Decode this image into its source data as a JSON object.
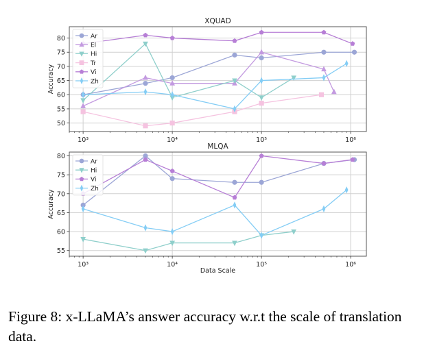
{
  "chart_data": [
    {
      "type": "line",
      "title": "XQUAD",
      "xlabel": "",
      "ylabel": "Accuracy",
      "xscale": "log",
      "xlim": [
        700,
        1500000
      ],
      "ylim": [
        47,
        84
      ],
      "yticks": [
        50,
        55,
        60,
        65,
        70,
        75,
        80
      ],
      "xticks": [
        1000,
        10000,
        100000,
        1000000
      ],
      "xtick_labels": [
        "10³",
        "10⁴",
        "10⁵",
        "10⁶"
      ],
      "grid": true,
      "legend_position": "top-left",
      "series": [
        {
          "name": "Ar",
          "color": "#9ca6d6",
          "marker": "circle",
          "x": [
            1000,
            5000,
            10000,
            50000,
            100000,
            500000,
            1100000
          ],
          "y": [
            60,
            64,
            66,
            74,
            73,
            75,
            75
          ]
        },
        {
          "name": "El",
          "color": "#c39ae0",
          "marker": "triangle-up",
          "x": [
            1000,
            5000,
            10000,
            50000,
            100000,
            500000,
            650000
          ],
          "y": [
            56,
            66,
            64,
            64,
            75,
            69,
            61
          ]
        },
        {
          "name": "Hi",
          "color": "#8fcfcb",
          "marker": "triangle-down",
          "x": [
            1000,
            5000,
            10000,
            50000,
            100000,
            230000
          ],
          "y": [
            58,
            78,
            59,
            65,
            59,
            66
          ]
        },
        {
          "name": "Tr",
          "color": "#f5c3e0",
          "marker": "square",
          "x": [
            1000,
            5000,
            10000,
            50000,
            100000,
            470000
          ],
          "y": [
            54,
            49,
            50,
            54,
            57,
            60
          ]
        },
        {
          "name": "Vi",
          "color": "#b77fd6",
          "marker": "pentagon",
          "x": [
            1000,
            5000,
            10000,
            50000,
            100000,
            500000,
            1050000
          ],
          "y": [
            78,
            81,
            80,
            79,
            82,
            82,
            78
          ]
        },
        {
          "name": "Zh",
          "color": "#84cdf5",
          "marker": "thin-diamond",
          "x": [
            1000,
            5000,
            10000,
            50000,
            100000,
            500000,
            900000
          ],
          "y": [
            60,
            61,
            60,
            55,
            65,
            66,
            71
          ]
        }
      ]
    },
    {
      "type": "line",
      "title": "MLQA",
      "xlabel": "Data Scale",
      "ylabel": "Accuracy",
      "xscale": "log",
      "xlim": [
        700,
        1500000
      ],
      "ylim": [
        53.5,
        81
      ],
      "yticks": [
        55,
        60,
        65,
        70,
        75,
        80
      ],
      "xticks": [
        1000,
        10000,
        100000,
        1000000
      ],
      "xtick_labels": [
        "10³",
        "10⁴",
        "10⁵",
        "10⁶"
      ],
      "grid": true,
      "legend_position": "top-left",
      "series": [
        {
          "name": "Ar",
          "color": "#9ca6d6",
          "marker": "circle",
          "x": [
            1000,
            5000,
            10000,
            50000,
            100000,
            500000,
            1100000
          ],
          "y": [
            67,
            80,
            74,
            73,
            73,
            78,
            79
          ]
        },
        {
          "name": "Hi",
          "color": "#8fcfcb",
          "marker": "triangle-down",
          "x": [
            1000,
            5000,
            10000,
            50000,
            100000,
            230000
          ],
          "y": [
            58,
            55,
            57,
            57,
            59,
            60
          ]
        },
        {
          "name": "Vi",
          "color": "#b77fd6",
          "marker": "pentagon",
          "x": [
            1000,
            5000,
            10000,
            50000,
            100000,
            500000,
            1050000
          ],
          "y": [
            70,
            79,
            76,
            69,
            80,
            78,
            79
          ]
        },
        {
          "name": "Zh",
          "color": "#84cdf5",
          "marker": "thin-diamond",
          "x": [
            1000,
            5000,
            10000,
            50000,
            100000,
            500000,
            900000
          ],
          "y": [
            66,
            61,
            60,
            67,
            59,
            66,
            71
          ]
        }
      ]
    }
  ],
  "caption": "Figure 8: x-LLaMA’s answer accuracy w.r.t the scale of translation data."
}
